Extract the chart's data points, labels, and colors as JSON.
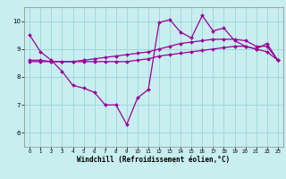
{
  "bg_color": "#c8eef0",
  "grid_color": "#a0d8dc",
  "line_color": "#990099",
  "marker_color": "#990099",
  "xlabel": "Windchill (Refroidissement éolien,°C)",
  "xlim": [
    -0.5,
    23.5
  ],
  "ylim": [
    5.5,
    10.5
  ],
  "yticks": [
    6,
    7,
    8,
    9,
    10
  ],
  "xticks": [
    0,
    1,
    2,
    3,
    4,
    5,
    6,
    7,
    8,
    9,
    10,
    11,
    12,
    13,
    14,
    15,
    16,
    17,
    18,
    19,
    20,
    21,
    22,
    23
  ],
  "series1": {
    "x": [
      0,
      1,
      2,
      3,
      4,
      5,
      6,
      7,
      8,
      9,
      10,
      11,
      12,
      13,
      14,
      15,
      16,
      17,
      18,
      19,
      20,
      21,
      22,
      23
    ],
    "y": [
      9.5,
      8.9,
      8.6,
      8.2,
      7.7,
      7.6,
      7.45,
      7.0,
      7.0,
      6.3,
      7.25,
      7.55,
      9.95,
      10.05,
      9.6,
      9.4,
      10.2,
      9.65,
      9.75,
      9.3,
      9.1,
      9.0,
      9.2,
      8.6
    ]
  },
  "series2": {
    "x": [
      0,
      1,
      2,
      3,
      4,
      5,
      6,
      7,
      8,
      9,
      10,
      11,
      12,
      13,
      14,
      15,
      16,
      17,
      18,
      19,
      20,
      21,
      22,
      23
    ],
    "y": [
      8.6,
      8.6,
      8.55,
      8.55,
      8.55,
      8.6,
      8.65,
      8.7,
      8.75,
      8.8,
      8.85,
      8.9,
      9.0,
      9.1,
      9.2,
      9.25,
      9.3,
      9.35,
      9.35,
      9.35,
      9.3,
      9.1,
      9.1,
      8.6
    ]
  },
  "series3": {
    "x": [
      0,
      1,
      2,
      3,
      4,
      5,
      6,
      7,
      8,
      9,
      10,
      11,
      12,
      13,
      14,
      15,
      16,
      17,
      18,
      19,
      20,
      21,
      22,
      23
    ],
    "y": [
      8.55,
      8.55,
      8.55,
      8.55,
      8.55,
      8.55,
      8.55,
      8.55,
      8.55,
      8.55,
      8.6,
      8.65,
      8.75,
      8.8,
      8.85,
      8.9,
      8.95,
      9.0,
      9.05,
      9.1,
      9.1,
      9.0,
      8.9,
      8.6
    ]
  }
}
